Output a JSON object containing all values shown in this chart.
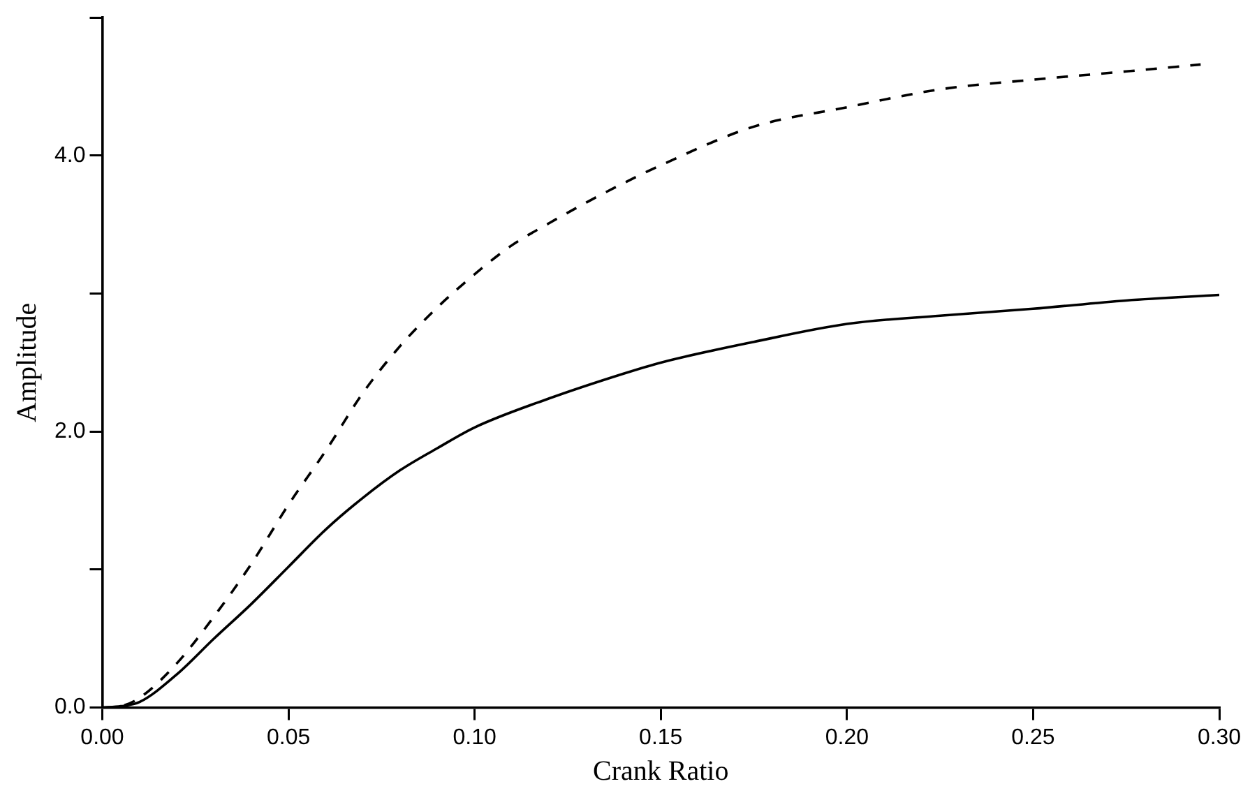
{
  "chart_data": {
    "type": "line",
    "xlabel": "Crank Ratio",
    "ylabel": "Amplitude",
    "xlim": [
      0,
      0.3
    ],
    "ylim": [
      0,
      5
    ],
    "xticks": [
      {
        "value": 0,
        "label": "0.00"
      },
      {
        "value": 0.05,
        "label": "0.05"
      },
      {
        "value": 0.1,
        "label": "0.10"
      },
      {
        "value": 0.15,
        "label": "0.15"
      },
      {
        "value": 0.2,
        "label": "0.20"
      },
      {
        "value": 0.25,
        "label": "0.25"
      },
      {
        "value": 0.3,
        "label": "0.30"
      }
    ],
    "yticks": [
      {
        "value": 0,
        "label": "0.0"
      },
      {
        "value": 1,
        "label": null
      },
      {
        "value": 2,
        "label": "2.0"
      },
      {
        "value": 3,
        "label": null
      },
      {
        "value": 4,
        "label": "4.0"
      },
      {
        "value": 5,
        "label": null
      }
    ],
    "grid": false,
    "legend": false,
    "marker": "none",
    "series": [
      {
        "color": "#000000",
        "line_style": "solid",
        "x": [
          0,
          0.005,
          0.01,
          0.02,
          0.03,
          0.04,
          0.05,
          0.06,
          0.07,
          0.08,
          0.09,
          0.1,
          0.12,
          0.14,
          0.15,
          0.175,
          0.2,
          0.225,
          0.25,
          0.275,
          0.3
        ],
        "values": [
          0,
          0.01,
          0.04,
          0.24,
          0.5,
          0.75,
          1.02,
          1.29,
          1.52,
          1.72,
          1.88,
          2.03,
          2.24,
          2.42,
          2.5,
          2.65,
          2.78,
          2.84,
          2.89,
          2.95,
          2.99
        ]
      },
      {
        "color": "#000000",
        "line_style": "dashed",
        "x": [
          0,
          0.005,
          0.01,
          0.02,
          0.03,
          0.04,
          0.05,
          0.06,
          0.07,
          0.08,
          0.09,
          0.1,
          0.11,
          0.12,
          0.13,
          0.14,
          0.15,
          0.175,
          0.2,
          0.225,
          0.25,
          0.275,
          0.295
        ],
        "values": [
          0,
          0.01,
          0.07,
          0.32,
          0.66,
          1.04,
          1.47,
          1.86,
          2.28,
          2.62,
          2.9,
          3.14,
          3.35,
          3.51,
          3.66,
          3.8,
          3.93,
          4.21,
          4.35,
          4.48,
          4.55,
          4.61,
          4.66
        ]
      }
    ]
  }
}
